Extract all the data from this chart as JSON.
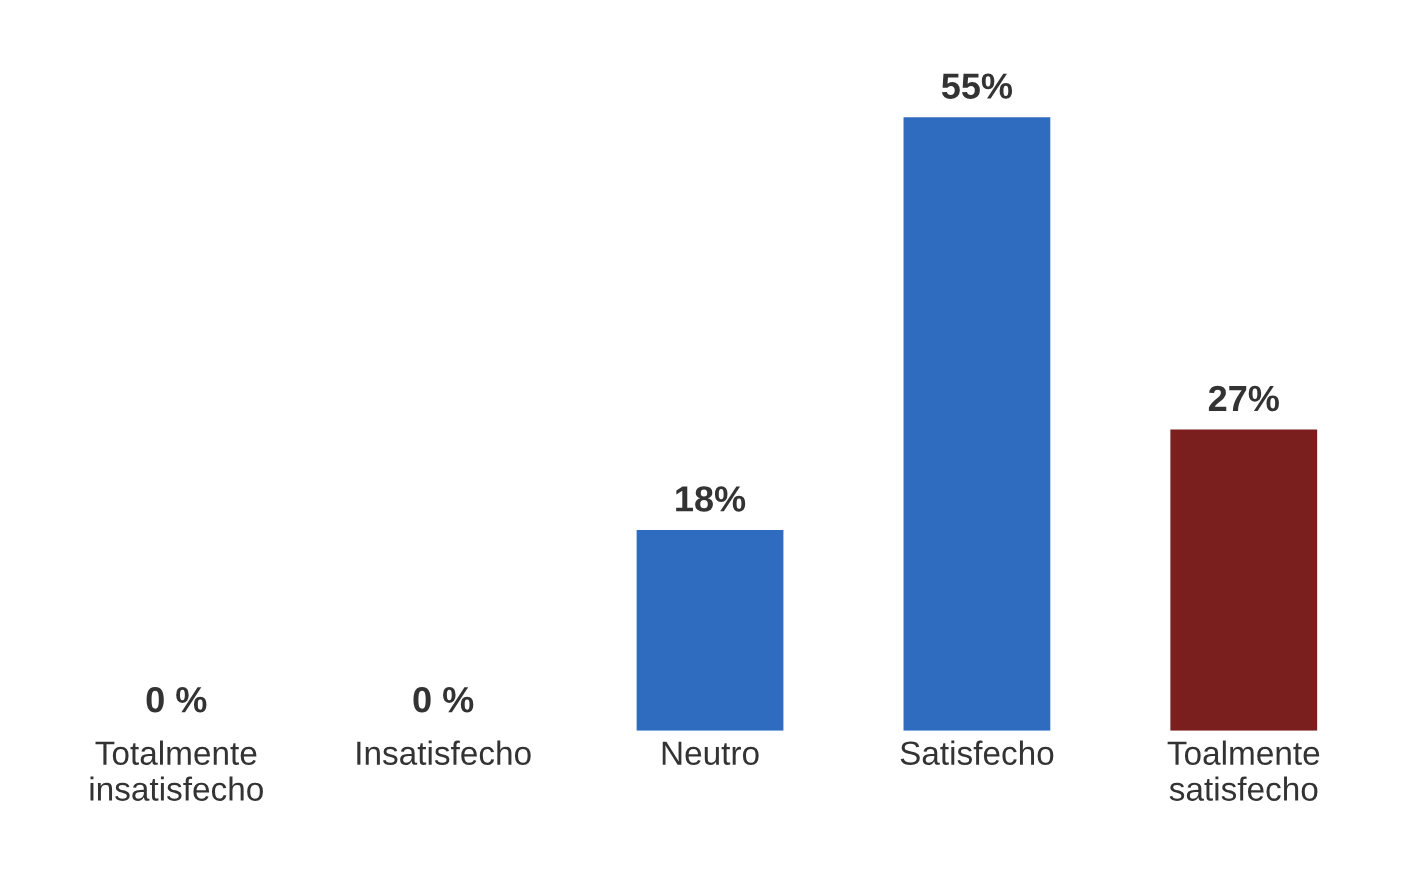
{
  "chart_data": {
    "type": "bar",
    "categories": [
      "Totalmente\ninsatisfecho",
      "Insatisfecho",
      "Neutro",
      "Satisfecho",
      "Toalmente\nsatisfecho"
    ],
    "values": [
      0,
      0,
      18,
      55,
      27
    ],
    "colors": [
      "#1a1a1a",
      "#2a6a52",
      "#2f6cc0",
      "#2f6cc0",
      "#7a1e1e"
    ],
    "value_labels": [
      "0 %",
      "0 %",
      "18%",
      "55%",
      "27%"
    ],
    "grid": false,
    "legend": false
  }
}
